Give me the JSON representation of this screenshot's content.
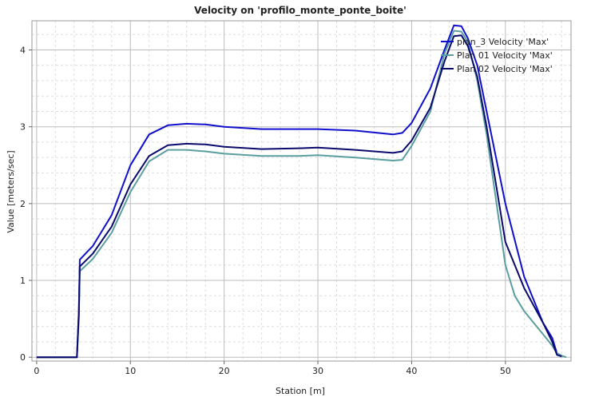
{
  "chart_data": {
    "type": "line",
    "title": "Velocity on 'profilo_monte_ponte_boite'",
    "xlabel": "Station [m]",
    "ylabel": "Value [meters/sec]",
    "xlim": [
      -0.5,
      57
    ],
    "ylim": [
      -0.05,
      4.38
    ],
    "xticks": [
      0,
      10,
      20,
      30,
      40,
      50
    ],
    "yticks": [
      0,
      1,
      2,
      3,
      4
    ],
    "grid": true,
    "legend_position": "top-right",
    "series": [
      {
        "name": "plan_3 Velocity 'Max'",
        "color": "#1010cc",
        "x": [
          0,
          4.3,
          4.5,
          4.6,
          6,
          8,
          10,
          12,
          14,
          16,
          18,
          20,
          24,
          28,
          30,
          34,
          38,
          39,
          40,
          42,
          43.5,
          44.5,
          45.3,
          46,
          47,
          48,
          50,
          52,
          54,
          55,
          55.5,
          56
        ],
        "y": [
          0,
          0,
          0.6,
          1.27,
          1.45,
          1.85,
          2.5,
          2.9,
          3.02,
          3.04,
          3.03,
          3.0,
          2.97,
          2.97,
          2.97,
          2.95,
          2.9,
          2.92,
          3.05,
          3.5,
          4.0,
          4.32,
          4.31,
          4.15,
          3.8,
          3.2,
          2.0,
          1.05,
          0.45,
          0.25,
          0.05,
          0.02
        ]
      },
      {
        "name": "Plan 01 Velocity 'Max'",
        "color": "#5b9ea0",
        "x": [
          0,
          4.3,
          4.5,
          4.6,
          6,
          8,
          10,
          12,
          14,
          16,
          18,
          20,
          24,
          28,
          30,
          34,
          38,
          39,
          40,
          42,
          43.5,
          44.5,
          45.3,
          46,
          47,
          48,
          50,
          51,
          52,
          54,
          55,
          55.5,
          56,
          56.5
        ],
        "y": [
          0,
          0,
          0.5,
          1.12,
          1.28,
          1.62,
          2.15,
          2.55,
          2.7,
          2.7,
          2.68,
          2.65,
          2.62,
          2.62,
          2.63,
          2.6,
          2.56,
          2.57,
          2.75,
          3.2,
          3.95,
          4.25,
          4.24,
          4.1,
          3.6,
          2.9,
          1.2,
          0.8,
          0.6,
          0.3,
          0.15,
          0.05,
          0.02,
          0.0
        ]
      },
      {
        "name": "Plan 02 Velocity 'Max'",
        "color": "#0a0a6e",
        "x": [
          0,
          4.3,
          4.5,
          4.6,
          6,
          8,
          10,
          12,
          14,
          16,
          18,
          20,
          24,
          28,
          30,
          34,
          38,
          39,
          40,
          42,
          43.5,
          44.5,
          45.3,
          46,
          47,
          48,
          50,
          52,
          54,
          55,
          55.5,
          56
        ],
        "y": [
          0,
          0,
          0.55,
          1.18,
          1.35,
          1.7,
          2.25,
          2.62,
          2.76,
          2.78,
          2.77,
          2.74,
          2.71,
          2.72,
          2.73,
          2.7,
          2.66,
          2.68,
          2.82,
          3.25,
          3.85,
          4.18,
          4.19,
          4.05,
          3.65,
          3.0,
          1.5,
          0.9,
          0.45,
          0.2,
          0.03,
          0.01
        ]
      }
    ]
  }
}
